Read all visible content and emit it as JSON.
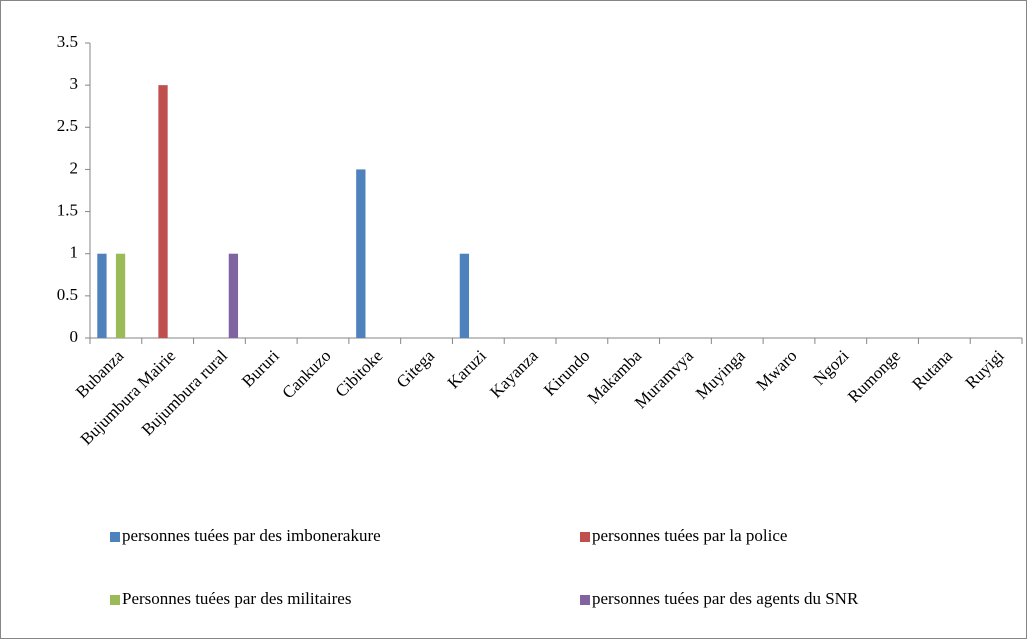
{
  "chart_data": {
    "type": "bar",
    "categories": [
      "Bubanza",
      "Bujumbura Mairie",
      "Bujumbura rural",
      "Bururi",
      "Cankuzo",
      "Cibitoke",
      "Gitega",
      "Karuzi",
      "Kayanza",
      "Kirundo",
      "Makamba",
      "Muramvya",
      "Muyinga",
      "Mwaro",
      "Ngozi",
      "Rumonge",
      "Rutana",
      "Ruyigi"
    ],
    "series": [
      {
        "name": "personnes tuées par des imbonerakure",
        "color": "#4f81bd",
        "values": [
          1,
          0,
          0,
          0,
          0,
          2,
          0,
          1,
          0,
          0,
          0,
          0,
          0,
          0,
          0,
          0,
          0,
          0
        ]
      },
      {
        "name": "personnes tuées par la police",
        "color": "#c0504d",
        "values": [
          0,
          3,
          0,
          0,
          0,
          0,
          0,
          0,
          0,
          0,
          0,
          0,
          0,
          0,
          0,
          0,
          0,
          0
        ]
      },
      {
        "name": "Personnes tuées par des militaires",
        "color": "#9bbb59",
        "values": [
          1,
          0,
          0,
          0,
          0,
          0,
          0,
          0,
          0,
          0,
          0,
          0,
          0,
          0,
          0,
          0,
          0,
          0
        ]
      },
      {
        "name": "personnes tuées par des agents du SNR",
        "color": "#8064a2",
        "values": [
          0,
          0,
          1,
          0,
          0,
          0,
          0,
          0,
          0,
          0,
          0,
          0,
          0,
          0,
          0,
          0,
          0,
          0
        ]
      }
    ],
    "ylim": [
      0,
      3.5
    ],
    "yticks": [
      0,
      0.5,
      1,
      1.5,
      2,
      2.5,
      3,
      3.5
    ],
    "grid": false
  }
}
